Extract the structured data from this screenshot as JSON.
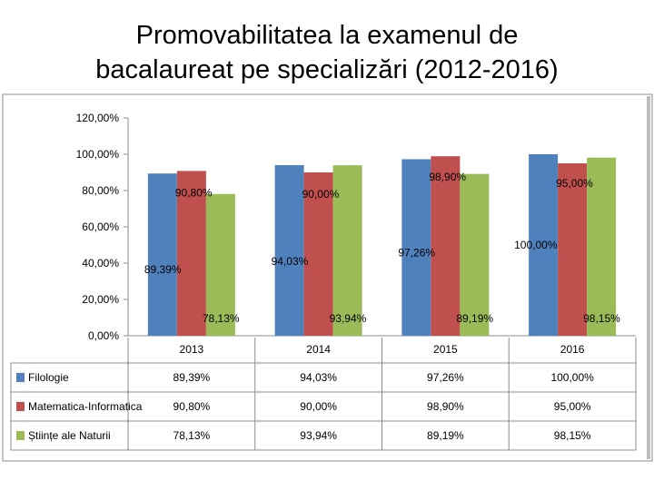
{
  "title": {
    "line1": "Promovabilitatea la examenul de",
    "line2": "bacalaureat pe specializări (2012-2016)"
  },
  "chart_data": {
    "type": "bar",
    "title": "Promovabilitatea la examenul de bacalaureat pe specializări (2012-2016)",
    "categories": [
      "2013",
      "2014",
      "2015",
      "2016"
    ],
    "ylim": [
      0,
      120
    ],
    "yticks": [
      0,
      20,
      40,
      60,
      80,
      100,
      120
    ],
    "ytick_labels": [
      "0,00%",
      "20,00%",
      "40,00%",
      "60,00%",
      "80,00%",
      "100,00%",
      "120,00%"
    ],
    "grid": false,
    "legend": "left-table",
    "series": [
      {
        "name": "Filologie",
        "color": "#4f81bd",
        "values": [
          89.39,
          94.03,
          97.26,
          100.0
        ],
        "labels": [
          "89,39%",
          "94,03%",
          "97,26%",
          "100,00%"
        ]
      },
      {
        "name": "Matematica-Informatica",
        "color": "#c0504d",
        "values": [
          90.8,
          90.0,
          98.9,
          95.0
        ],
        "labels": [
          "90,80%",
          "90,00%",
          "98,90%",
          "95,00%"
        ]
      },
      {
        "name": "Științe ale Naturii",
        "color": "#9bbb59",
        "values": [
          78.13,
          93.94,
          89.19,
          98.15
        ],
        "labels": [
          "78,13%",
          "93,94%",
          "89,19%",
          "98,15%"
        ]
      }
    ]
  }
}
